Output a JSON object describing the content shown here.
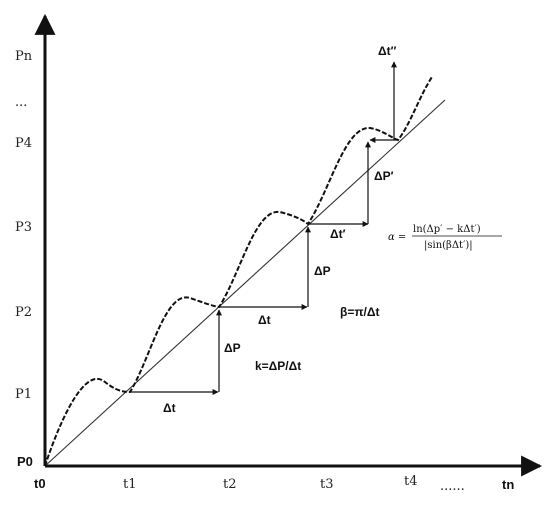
{
  "axes": {
    "y_label": "Pn",
    "x_label": "tn",
    "origin_x": "t0",
    "origin_y": "P0",
    "y_ticks": [
      "P1",
      "P2",
      "P3",
      "P4"
    ],
    "y_ellipsis": "...",
    "x_ticks": [
      "t1",
      "t2",
      "t3",
      "t4"
    ],
    "x_ellipsis": "......"
  },
  "annotations": {
    "dt": "Δt",
    "dP": "ΔP",
    "dt_prime": "Δt′",
    "dP_prime": "ΔP′",
    "dt_double_prime": "Δt″",
    "k_formula": "k=ΔP/Δt",
    "beta_formula": "β=π/Δt",
    "alpha_lhs": "α =",
    "alpha_numerator": "ln(Δp′ − kΔt′)",
    "alpha_denominator": "|sin(βΔt′)|"
  },
  "colors": {
    "line": "#111111",
    "background": "#ffffff"
  }
}
